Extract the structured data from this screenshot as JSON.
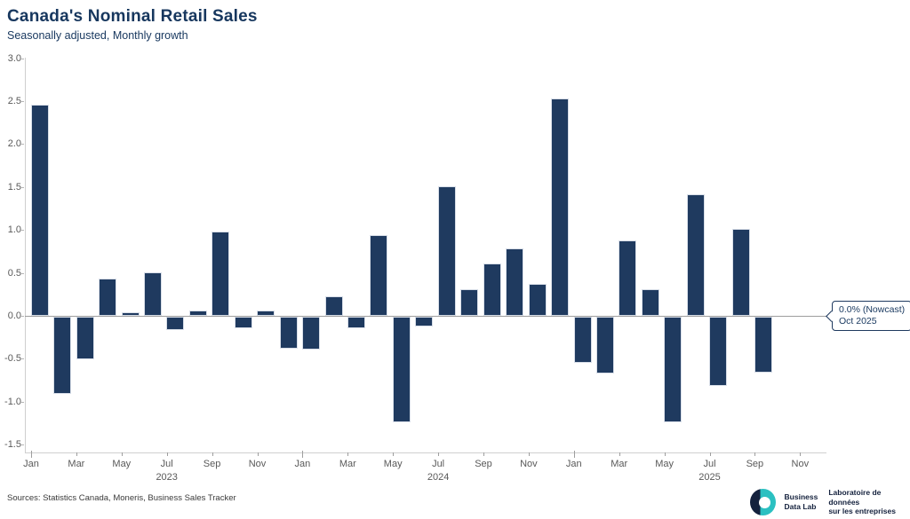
{
  "header": {
    "title": "Canada's Nominal Retail Sales",
    "subtitle": "Seasonally adjusted, Monthly growth"
  },
  "chart_data": {
    "type": "bar",
    "title": "Canada's Nominal Retail Sales",
    "subtitle": "Seasonally adjusted, Monthly growth",
    "ylabel": "",
    "xlabel": "",
    "ylim": [
      -1.5,
      3.0
    ],
    "y_ticks": [
      3.0,
      2.5,
      2.0,
      1.5,
      1.0,
      0.5,
      0.0,
      -0.5,
      -1.0,
      -1.5
    ],
    "grid": "zero-baseline-only",
    "legend": "none",
    "bar_color": "#1f3a5f",
    "categories": [
      "Jan 2023",
      "Feb 2023",
      "Mar 2023",
      "Apr 2023",
      "May 2023",
      "Jun 2023",
      "Jul 2023",
      "Aug 2023",
      "Sep 2023",
      "Oct 2023",
      "Nov 2023",
      "Dec 2023",
      "Jan 2024",
      "Feb 2024",
      "Mar 2024",
      "Apr 2024",
      "May 2024",
      "Jun 2024",
      "Jul 2024",
      "Aug 2024",
      "Sep 2024",
      "Oct 2024",
      "Nov 2024",
      "Dec 2024",
      "Jan 2025",
      "Feb 2025",
      "Mar 2025",
      "Apr 2025",
      "May 2025",
      "Jun 2025",
      "Jul 2025",
      "Aug 2025",
      "Sep 2025",
      "Oct 2025"
    ],
    "series": [
      {
        "name": "Monthly growth (%)",
        "values": [
          2.46,
          -0.9,
          -0.5,
          0.43,
          0.04,
          0.51,
          -0.16,
          0.06,
          0.98,
          -0.13,
          0.06,
          -0.37,
          -0.38,
          0.23,
          -0.13,
          0.94,
          -1.23,
          -0.11,
          1.51,
          0.31,
          0.61,
          0.78,
          0.37,
          2.53,
          -0.54,
          -0.66,
          0.88,
          0.31,
          -1.23,
          1.42,
          -0.81,
          1.01,
          -0.65,
          0.0
        ]
      }
    ],
    "x_ticks": [
      {
        "i": 0,
        "label": "Jan"
      },
      {
        "i": 2,
        "label": "Mar"
      },
      {
        "i": 4,
        "label": "May"
      },
      {
        "i": 6,
        "label": "Jul"
      },
      {
        "i": 8,
        "label": "Sep"
      },
      {
        "i": 10,
        "label": "Nov"
      },
      {
        "i": 12,
        "label": "Jan"
      },
      {
        "i": 14,
        "label": "Mar"
      },
      {
        "i": 16,
        "label": "May"
      },
      {
        "i": 18,
        "label": "Jul"
      },
      {
        "i": 20,
        "label": "Sep"
      },
      {
        "i": 22,
        "label": "Nov"
      },
      {
        "i": 24,
        "label": "Jan"
      },
      {
        "i": 26,
        "label": "Mar"
      },
      {
        "i": 28,
        "label": "May"
      },
      {
        "i": 30,
        "label": "Jul"
      },
      {
        "i": 32,
        "label": "Sep"
      },
      {
        "i": 34,
        "label": "Nov"
      }
    ],
    "year_labels": [
      {
        "i": 6,
        "text": "2023"
      },
      {
        "i": 18,
        "text": "2024"
      },
      {
        "i": 30,
        "text": "2025"
      }
    ],
    "annotation": {
      "value_label": "0.0% (Nowcast)",
      "period_label": "Oct 2025"
    }
  },
  "footer": {
    "sources": "Sources: Statistics Canada, Moneris, Business Sales Tracker",
    "logo": {
      "mark": "bdl-donut-logo",
      "en_line1": "Business",
      "en_line2": "Data Lab",
      "fr_line1": "Laboratoire de données",
      "fr_line2": "sur les entreprises"
    }
  },
  "colors": {
    "bar": "#1f3a5f",
    "title_navy": "#17375e",
    "axis_text": "#595959",
    "zero_line": "#9e9e9e",
    "domain_line": "#cfcfcf",
    "logo_teal": "#2bc0c1",
    "logo_navy": "#14213d"
  }
}
